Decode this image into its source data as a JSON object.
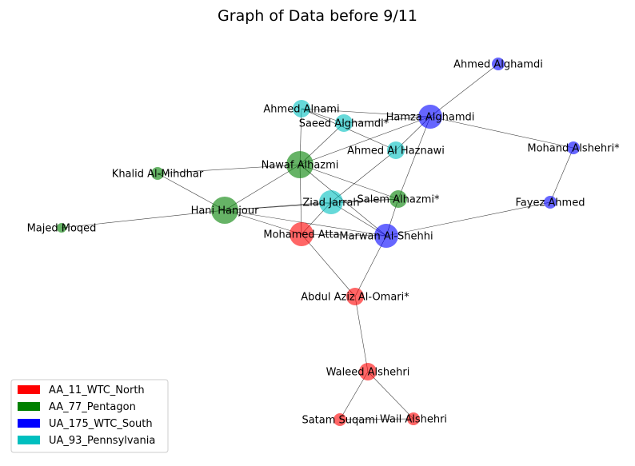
{
  "chart_data": {
    "type": "network",
    "title": "Graph of Data before 9/11",
    "groups": [
      {
        "name": "AA_11_WTC_North",
        "color": "#ff0000"
      },
      {
        "name": "AA_77_Pentagon",
        "color": "#008000"
      },
      {
        "name": "UA_175_WTC_South",
        "color": "#0000ff"
      },
      {
        "name": "UA_93_Pennsylvania",
        "color": "#00bfbf"
      }
    ],
    "nodes": [
      {
        "id": "ahmed_alghamdi",
        "label": "Ahmed Alghamdi",
        "group": "UA_175_WTC_South",
        "size": "small"
      },
      {
        "id": "ahmed_alnami",
        "label": "Ahmed Alnami",
        "group": "UA_93_Pennsylvania",
        "size": "medium"
      },
      {
        "id": "hamza_alghamdi",
        "label": "Hamza Alghamdi",
        "group": "UA_175_WTC_South",
        "size": "large"
      },
      {
        "id": "saeed_alghamdi",
        "label": "Saeed Alghamdi*",
        "group": "UA_93_Pennsylvania",
        "size": "medium"
      },
      {
        "id": "mohand_alshehri",
        "label": "Mohand Alshehri*",
        "group": "UA_175_WTC_South",
        "size": "small"
      },
      {
        "id": "ahmed_al_haznawi",
        "label": "Ahmed Al Haznawi",
        "group": "UA_93_Pennsylvania",
        "size": "medium"
      },
      {
        "id": "khalid_al_mihdhar",
        "label": "Khalid Al-Mihdhar",
        "group": "AA_77_Pentagon",
        "size": "small"
      },
      {
        "id": "nawaf_alhazmi",
        "label": "Nawaf Alhazmi",
        "group": "AA_77_Pentagon",
        "size": "xlarge"
      },
      {
        "id": "salem_alhazmi",
        "label": "Salem Alhazmi*",
        "group": "AA_77_Pentagon",
        "size": "medium"
      },
      {
        "id": "ziad_jarrah",
        "label": "Ziad Jarrah",
        "group": "UA_93_Pennsylvania",
        "size": "large"
      },
      {
        "id": "fayez_ahmed",
        "label": "Fayez Ahmed",
        "group": "UA_175_WTC_South",
        "size": "small"
      },
      {
        "id": "hani_hanjour",
        "label": "Hani Hanjour",
        "group": "AA_77_Pentagon",
        "size": "xlarge"
      },
      {
        "id": "majed_moqed",
        "label": "Majed Moqed",
        "group": "AA_77_Pentagon",
        "size": "tiny"
      },
      {
        "id": "mohamed_atta",
        "label": "Mohamed Atta",
        "group": "AA_11_WTC_North",
        "size": "large"
      },
      {
        "id": "marwan_al_shehhi",
        "label": "Marwan Al-Shehhi",
        "group": "UA_175_WTC_South",
        "size": "large"
      },
      {
        "id": "abdul_aziz_al_omari",
        "label": "Abdul Aziz Al-Omari*",
        "group": "AA_11_WTC_North",
        "size": "medium"
      },
      {
        "id": "waleed_alshehri",
        "label": "Waleed Alshehri",
        "group": "AA_11_WTC_North",
        "size": "medium"
      },
      {
        "id": "satam_suqami",
        "label": "Satam Suqami",
        "group": "AA_11_WTC_North",
        "size": "small"
      },
      {
        "id": "wail_alshehri",
        "label": "Wail Alshehri",
        "group": "AA_11_WTC_North",
        "size": "small"
      }
    ],
    "edges": [
      [
        "ahmed_alghamdi",
        "hamza_alghamdi"
      ],
      [
        "ahmed_alnami",
        "hamza_alghamdi"
      ],
      [
        "ahmed_alnami",
        "saeed_alghamdi"
      ],
      [
        "ahmed_alnami",
        "ahmed_al_haznawi"
      ],
      [
        "ahmed_alnami",
        "nawaf_alhazmi"
      ],
      [
        "saeed_alghamdi",
        "hamza_alghamdi"
      ],
      [
        "saeed_alghamdi",
        "nawaf_alhazmi"
      ],
      [
        "hamza_alghamdi",
        "mohand_alshehri"
      ],
      [
        "hamza_alghamdi",
        "ahmed_al_haznawi"
      ],
      [
        "hamza_alghamdi",
        "nawaf_alhazmi"
      ],
      [
        "hamza_alghamdi",
        "salem_alhazmi"
      ],
      [
        "ahmed_al_haznawi",
        "ziad_jarrah"
      ],
      [
        "mohand_alshehri",
        "fayez_ahmed"
      ],
      [
        "khalid_al_mihdhar",
        "nawaf_alhazmi"
      ],
      [
        "khalid_al_mihdhar",
        "hani_hanjour"
      ],
      [
        "nawaf_alhazmi",
        "hani_hanjour"
      ],
      [
        "nawaf_alhazmi",
        "salem_alhazmi"
      ],
      [
        "nawaf_alhazmi",
        "marwan_al_shehhi"
      ],
      [
        "nawaf_alhazmi",
        "mohamed_atta"
      ],
      [
        "salem_alhazmi",
        "hani_hanjour"
      ],
      [
        "salem_alhazmi",
        "ziad_jarrah"
      ],
      [
        "salem_alhazmi",
        "marwan_al_shehhi"
      ],
      [
        "majed_moqed",
        "hani_hanjour"
      ],
      [
        "hani_hanjour",
        "ziad_jarrah"
      ],
      [
        "hani_hanjour",
        "mohamed_atta"
      ],
      [
        "hani_hanjour",
        "marwan_al_shehhi"
      ],
      [
        "ziad_jarrah",
        "mohamed_atta"
      ],
      [
        "ziad_jarrah",
        "marwan_al_shehhi"
      ],
      [
        "mohamed_atta",
        "marwan_al_shehhi"
      ],
      [
        "mohamed_atta",
        "abdul_aziz_al_omari"
      ],
      [
        "marwan_al_shehhi",
        "abdul_aziz_al_omari"
      ],
      [
        "fayez_ahmed",
        "marwan_al_shehhi"
      ],
      [
        "abdul_aziz_al_omari",
        "waleed_alshehri"
      ],
      [
        "waleed_alshehri",
        "satam_suqami"
      ],
      [
        "waleed_alshehri",
        "wail_alshehri"
      ],
      [
        "satam_suqami",
        "wail_alshehri"
      ]
    ]
  }
}
